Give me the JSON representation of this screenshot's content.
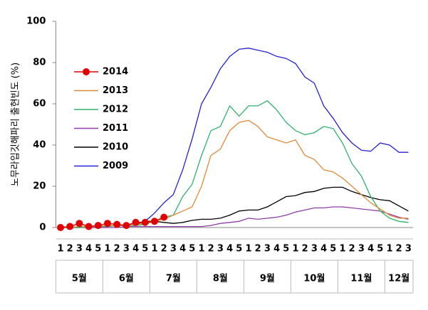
{
  "chart_data": {
    "type": "line",
    "y_label": "노무라입깃해파리 출현빈도 (%)",
    "categories": [
      "1",
      "2",
      "3",
      "4",
      "5",
      "1",
      "2",
      "3",
      "4",
      "5",
      "1",
      "2",
      "3",
      "4",
      "5",
      "1",
      "2",
      "3",
      "4",
      "5",
      "1",
      "2",
      "3",
      "4",
      "5",
      "1",
      "2",
      "3",
      "4",
      "5",
      "1",
      "2",
      "3",
      "4",
      "5",
      "1",
      "2",
      "3"
    ],
    "months": [
      "5월",
      "6월",
      "7월",
      "8월",
      "9월",
      "10월",
      "11월",
      "12월"
    ],
    "ylim": [
      0,
      100
    ],
    "yticks": [
      0,
      20,
      40,
      60,
      80,
      100
    ],
    "grid": false,
    "legend": "upper left",
    "series": [
      {
        "name": "2014",
        "color": "#e00000",
        "marker": true,
        "values": [
          0,
          0.5,
          2,
          0.5,
          1,
          2,
          1.5,
          1,
          2.5,
          2.5,
          3,
          5,
          null,
          null,
          null,
          null,
          null,
          null,
          null,
          null,
          null,
          null,
          null,
          null,
          null,
          null,
          null,
          null,
          null,
          null,
          null,
          null,
          null,
          null,
          null,
          null,
          null,
          null
        ]
      },
      {
        "name": "2013",
        "color": "#e08b3a",
        "values": [
          0,
          0,
          0.5,
          0.5,
          0.5,
          1,
          1,
          1,
          1.5,
          2,
          3,
          4,
          6,
          8,
          10,
          20,
          35,
          38,
          47,
          51,
          52,
          49,
          44,
          42.5,
          41,
          42.5,
          35,
          33,
          28,
          27,
          24,
          20,
          16,
          12,
          9,
          6,
          4.5,
          4.5
        ]
      },
      {
        "name": "2012",
        "color": "#2db36b",
        "values": [
          0,
          0,
          0,
          0.5,
          0.5,
          0.5,
          1,
          1,
          1,
          1.5,
          3,
          5,
          6,
          15,
          21,
          35,
          47,
          49,
          59,
          54,
          59,
          59,
          61.5,
          57,
          51,
          47,
          45,
          46,
          49,
          48,
          41,
          31,
          25,
          15,
          8,
          4.5,
          3,
          2.5
        ]
      },
      {
        "name": "2011",
        "color": "#8e3fa6",
        "values": [
          0,
          0,
          0,
          0,
          0,
          0,
          0,
          0.5,
          0.5,
          0.5,
          0.5,
          0.5,
          0.5,
          0.5,
          0.5,
          0.5,
          1,
          2,
          2.5,
          3,
          4.5,
          4,
          4.5,
          5,
          6,
          7.5,
          8.5,
          9.5,
          9.5,
          10,
          10,
          9.5,
          9,
          8.5,
          8,
          6.5,
          5,
          4
        ]
      },
      {
        "name": "2010",
        "color": "#000000",
        "values": [
          0,
          0,
          0,
          0.5,
          0.5,
          0.5,
          1,
          1,
          1.5,
          3,
          3,
          2.5,
          2,
          2.5,
          3.5,
          4,
          4,
          4.5,
          6,
          8,
          8.5,
          8.5,
          10,
          12.5,
          15,
          15.5,
          17,
          17.5,
          19,
          19.5,
          19.5,
          17.5,
          16,
          14.5,
          13.5,
          13,
          10.5,
          8
        ]
      },
      {
        "name": "2009",
        "color": "#2323d6",
        "values": [
          0,
          0,
          0.5,
          0.5,
          0.5,
          1,
          1,
          1,
          1.5,
          3,
          7,
          12,
          16,
          28,
          43,
          60,
          68,
          77,
          83,
          86.5,
          87,
          86,
          85,
          83,
          82,
          79.5,
          73,
          70,
          59,
          53,
          46,
          41,
          37.5,
          37,
          41,
          40,
          36.5,
          36.5
        ]
      }
    ]
  }
}
